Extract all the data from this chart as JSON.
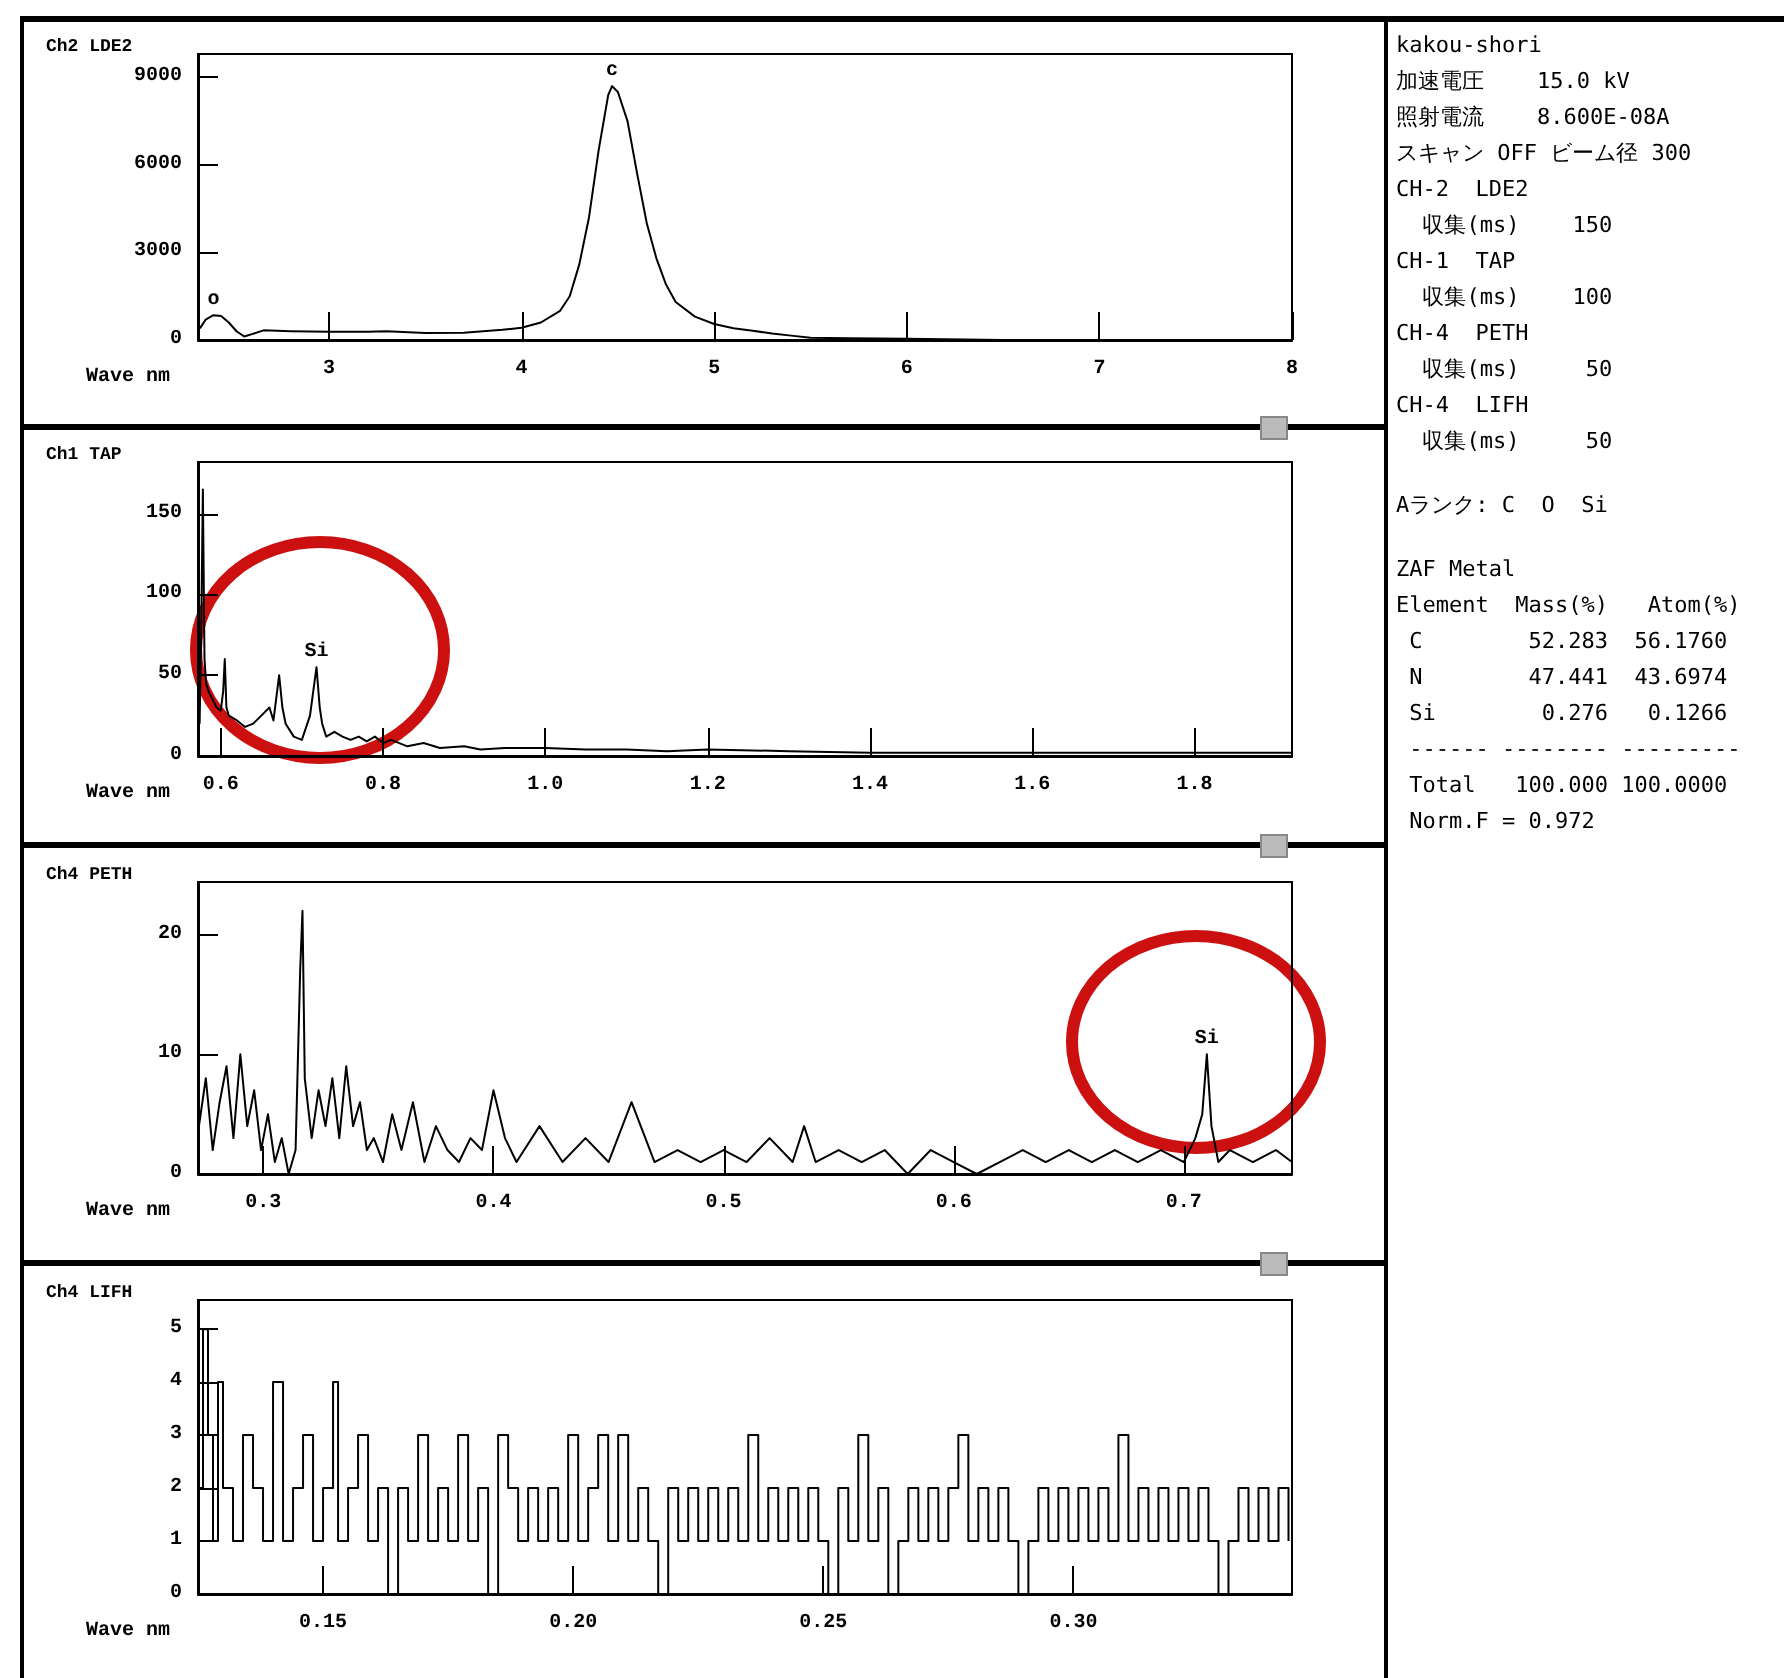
{
  "chart_data": [
    {
      "type": "line",
      "title": "Ch2 LDE2",
      "xlabel": "Wave nm",
      "xlim": [
        2.32,
        8
      ],
      "xticks": [
        3,
        4,
        5,
        6,
        7,
        8
      ],
      "ylim": [
        0,
        9800
      ],
      "yticks": [
        0,
        3000,
        6000,
        9000
      ],
      "x": [
        2.33,
        2.36,
        2.4,
        2.44,
        2.48,
        2.52,
        2.56,
        2.6,
        2.66,
        2.8,
        3.0,
        3.2,
        3.3,
        3.5,
        3.7,
        3.8,
        3.9,
        4.0,
        4.1,
        4.2,
        4.25,
        4.3,
        4.35,
        4.4,
        4.45,
        4.47,
        4.5,
        4.55,
        4.6,
        4.65,
        4.7,
        4.75,
        4.8,
        4.9,
        5.0,
        5.1,
        5.2,
        5.3,
        5.4,
        5.5,
        5.7,
        6.0,
        6.3,
        6.5,
        7.0,
        7.5,
        8.0
      ],
      "series": [
        {
          "color": "#000000",
          "values": [
            400,
            700,
            850,
            820,
            600,
            300,
            120,
            200,
            330,
            300,
            280,
            280,
            300,
            240,
            250,
            300,
            350,
            420,
            600,
            1000,
            1500,
            2600,
            4200,
            6500,
            8400,
            8700,
            8500,
            7500,
            5700,
            4000,
            2800,
            1900,
            1300,
            800,
            550,
            400,
            320,
            220,
            150,
            80,
            60,
            40,
            20,
            0,
            0,
            0,
            0
          ]
        }
      ],
      "annotations": [
        {
          "text": "c",
          "x": 4.47,
          "y": 8700
        },
        {
          "text": "o",
          "x": 2.4,
          "y": 850
        }
      ]
    },
    {
      "type": "line",
      "title": "Ch1 TAP",
      "xlabel": "Wave nm",
      "xlim": [
        0.572,
        1.92
      ],
      "xticks": [
        0.6,
        0.8,
        {
          "value": 1,
          "label": "1.0"
        },
        1.2,
        1.4,
        1.6,
        1.8
      ],
      "ylim": [
        0,
        182
      ],
      "yticks": [
        0,
        50,
        100,
        150
      ],
      "x": [
        0.574,
        0.576,
        0.578,
        0.58,
        0.582,
        0.585,
        0.59,
        0.595,
        0.6,
        0.603,
        0.605,
        0.607,
        0.61,
        0.62,
        0.63,
        0.64,
        0.65,
        0.66,
        0.665,
        0.672,
        0.676,
        0.68,
        0.69,
        0.7,
        0.71,
        0.714,
        0.718,
        0.722,
        0.725,
        0.73,
        0.74,
        0.75,
        0.76,
        0.77,
        0.78,
        0.79,
        0.8,
        0.81,
        0.83,
        0.85,
        0.87,
        0.9,
        0.92,
        0.95,
        1.0,
        1.05,
        1.1,
        1.15,
        1.2,
        1.3,
        1.4,
        1.5,
        1.6,
        1.7,
        1.8,
        1.92
      ],
      "series": [
        {
          "color": "#000000",
          "values": [
            20,
            80,
            165,
            60,
            45,
            40,
            35,
            30,
            28,
            40,
            60,
            30,
            25,
            22,
            18,
            20,
            25,
            30,
            22,
            50,
            30,
            20,
            12,
            10,
            25,
            40,
            55,
            30,
            20,
            12,
            15,
            12,
            10,
            12,
            9,
            12,
            8,
            10,
            6,
            8,
            5,
            6,
            4,
            5,
            5,
            4,
            4,
            3,
            4,
            3,
            2,
            2,
            2,
            2,
            2,
            2
          ]
        }
      ],
      "annotations": [
        {
          "text": "Si",
          "x": 0.718,
          "y": 55
        }
      ]
    },
    {
      "type": "line",
      "title": "Ch4 PETH",
      "xlabel": "Wave nm",
      "xlim": [
        0.2716,
        0.747
      ],
      "xticks": [
        0.3,
        0.4,
        0.5,
        0.6,
        0.7
      ],
      "ylim": [
        0,
        24.4
      ],
      "yticks": [
        0,
        10,
        20
      ],
      "x": [
        0.272,
        0.275,
        0.278,
        0.281,
        0.284,
        0.287,
        0.29,
        0.293,
        0.296,
        0.299,
        0.302,
        0.305,
        0.308,
        0.311,
        0.314,
        0.316,
        0.317,
        0.318,
        0.321,
        0.324,
        0.327,
        0.33,
        0.333,
        0.336,
        0.339,
        0.342,
        0.345,
        0.348,
        0.352,
        0.356,
        0.36,
        0.365,
        0.37,
        0.375,
        0.38,
        0.385,
        0.39,
        0.395,
        0.4,
        0.405,
        0.41,
        0.42,
        0.43,
        0.44,
        0.45,
        0.46,
        0.47,
        0.48,
        0.49,
        0.5,
        0.51,
        0.52,
        0.53,
        0.535,
        0.54,
        0.55,
        0.56,
        0.57,
        0.58,
        0.59,
        0.6,
        0.61,
        0.62,
        0.63,
        0.64,
        0.65,
        0.66,
        0.67,
        0.68,
        0.69,
        0.7,
        0.705,
        0.708,
        0.71,
        0.712,
        0.715,
        0.72,
        0.73,
        0.74,
        0.747
      ],
      "series": [
        {
          "color": "#000000",
          "values": [
            4,
            8,
            2,
            6,
            9,
            3,
            10,
            4,
            7,
            2,
            5,
            1,
            3,
            0,
            2,
            17,
            22,
            8,
            3,
            7,
            4,
            8,
            3,
            9,
            4,
            6,
            2,
            3,
            1,
            5,
            2,
            6,
            1,
            4,
            2,
            1,
            3,
            2,
            7,
            3,
            1,
            4,
            1,
            3,
            1,
            6,
            1,
            2,
            1,
            2,
            1,
            3,
            1,
            4,
            1,
            2,
            1,
            2,
            0,
            2,
            1,
            0,
            1,
            2,
            1,
            2,
            1,
            2,
            1,
            2,
            1,
            3,
            5,
            10,
            4,
            1,
            2,
            1,
            2,
            1
          ]
        }
      ],
      "annotations": [
        {
          "text": "Si",
          "x": 0.71,
          "y": 10
        }
      ]
    },
    {
      "type": "step",
      "title": "Ch4 LIFH",
      "xlabel": "Wave nm",
      "xlim": [
        0.125,
        0.3437
      ],
      "xticks": [
        0.15,
        {
          "value": 0.2,
          "label": "0.20"
        },
        0.25,
        {
          "value": 0.3,
          "label": "0.30"
        }
      ],
      "ylim": [
        0,
        5.55
      ],
      "yticks": [
        0,
        1,
        2,
        3,
        4,
        5
      ],
      "x": [
        0.125,
        0.126,
        0.127,
        0.128,
        0.129,
        0.13,
        0.132,
        0.134,
        0.136,
        0.138,
        0.14,
        0.142,
        0.144,
        0.146,
        0.148,
        0.15,
        0.152,
        0.153,
        0.155,
        0.157,
        0.159,
        0.161,
        0.163,
        0.165,
        0.167,
        0.169,
        0.171,
        0.173,
        0.175,
        0.177,
        0.179,
        0.181,
        0.183,
        0.185,
        0.187,
        0.189,
        0.191,
        0.193,
        0.195,
        0.197,
        0.199,
        0.201,
        0.203,
        0.205,
        0.207,
        0.209,
        0.211,
        0.213,
        0.215,
        0.217,
        0.219,
        0.221,
        0.223,
        0.225,
        0.227,
        0.229,
        0.231,
        0.233,
        0.235,
        0.237,
        0.239,
        0.241,
        0.243,
        0.245,
        0.247,
        0.249,
        0.251,
        0.253,
        0.255,
        0.257,
        0.259,
        0.261,
        0.263,
        0.265,
        0.267,
        0.269,
        0.271,
        0.273,
        0.275,
        0.277,
        0.279,
        0.281,
        0.283,
        0.285,
        0.287,
        0.289,
        0.291,
        0.293,
        0.295,
        0.297,
        0.299,
        0.301,
        0.303,
        0.305,
        0.307,
        0.309,
        0.311,
        0.313,
        0.315,
        0.317,
        0.319,
        0.321,
        0.323,
        0.325,
        0.327,
        0.329,
        0.331,
        0.333,
        0.335,
        0.337,
        0.339,
        0.341,
        0.343
      ],
      "series": [
        {
          "color": "#000000",
          "values": [
            2,
            5,
            3,
            1,
            4,
            2,
            1,
            3,
            2,
            1,
            4,
            1,
            2,
            3,
            1,
            2,
            4,
            1,
            2,
            3,
            1,
            2,
            0,
            2,
            1,
            3,
            1,
            2,
            1,
            3,
            1,
            2,
            0,
            3,
            2,
            1,
            2,
            1,
            2,
            1,
            3,
            1,
            2,
            3,
            1,
            3,
            1,
            2,
            1,
            0,
            2,
            1,
            2,
            1,
            2,
            1,
            2,
            1,
            3,
            1,
            2,
            1,
            2,
            1,
            2,
            1,
            0,
            2,
            1,
            3,
            1,
            2,
            0,
            1,
            2,
            1,
            2,
            1,
            2,
            3,
            1,
            2,
            1,
            2,
            1,
            0,
            1,
            2,
            1,
            2,
            1,
            2,
            1,
            2,
            1,
            3,
            1,
            2,
            1,
            2,
            1,
            2,
            1,
            2,
            1,
            0,
            1,
            2,
            1,
            2,
            1,
            2,
            1
          ]
        }
      ]
    },
    {
      "type": "other",
      "annotations": [
        "kakou-shori",
        "加速電圧    15.0 kV",
        "照射電流    8.600E-08A",
        "スキャン OFF ビーム径 300",
        "CH-2  LDE2",
        "  収集(ms)    150",
        "CH-1  TAP",
        "  収集(ms)    100",
        "CH-4  PETH",
        "  収集(ms)     50",
        "CH-4  LIFH",
        "  収集(ms)     50",
        "Aランク: C  O  Si",
        "ZAF Metal",
        "Element  Mass(%)   Atom(%)",
        " C        52.283  56.1760",
        " N        47.441  43.6974",
        " Si        0.276   0.1266",
        " ------ -------- ---------",
        " Total   100.000 100.0000",
        " Norm.F = 0.972"
      ]
    }
  ]
}
